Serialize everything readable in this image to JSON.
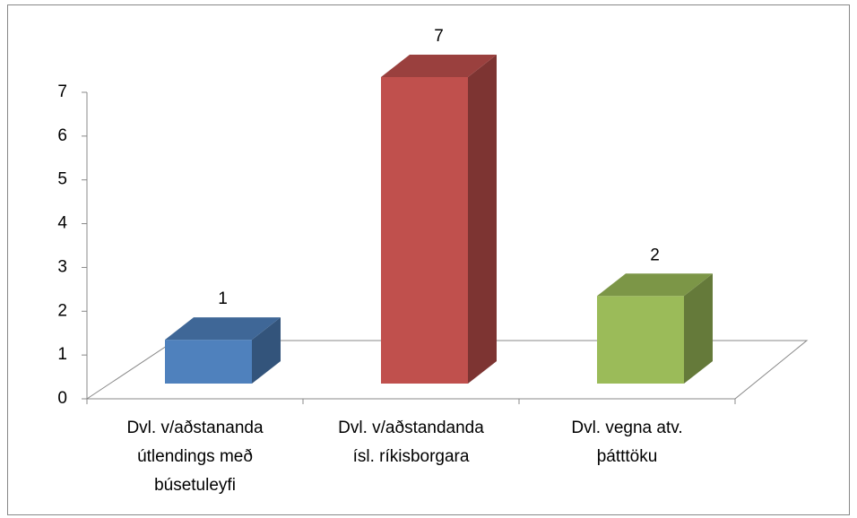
{
  "chart_data": {
    "type": "bar3d",
    "categories": [
      "Dvl.  v/aðstananda\nútlendings með\nbúsetuleyfi",
      "Dvl. v/aðstandanda\nísl. ríkisborgara",
      "Dvl. vegna atv.\nþátttöku"
    ],
    "values": [
      1,
      7,
      2
    ],
    "colors": [
      "#4f81bd",
      "#c0504d",
      "#9bbb59"
    ],
    "ylim": [
      0,
      7
    ],
    "yticks": [
      0,
      1,
      2,
      3,
      4,
      5,
      6,
      7
    ],
    "grid": false
  }
}
